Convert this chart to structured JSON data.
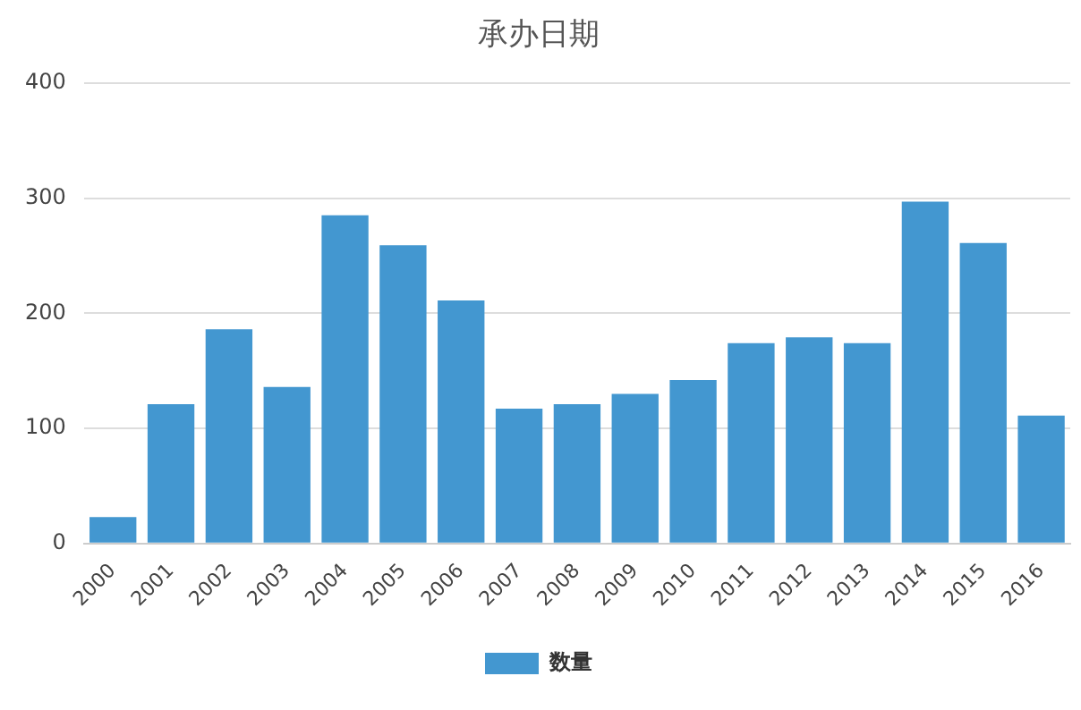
{
  "chart_data": {
    "type": "bar",
    "title": "承办日期",
    "categories": [
      "2000",
      "2001",
      "2002",
      "2003",
      "2004",
      "2005",
      "2006",
      "2007",
      "2008",
      "2009",
      "2010",
      "2011",
      "2012",
      "2013",
      "2014",
      "2015",
      "2016"
    ],
    "series": [
      {
        "name": "数量",
        "color": "#4397d0",
        "values": [
          23,
          121,
          186,
          136,
          285,
          259,
          211,
          117,
          121,
          130,
          142,
          174,
          179,
          174,
          297,
          261,
          111
        ]
      }
    ],
    "ylim": [
      0,
      400
    ],
    "yticks": [
      0,
      100,
      200,
      300,
      400
    ],
    "grid": "y",
    "legend": "bottom"
  }
}
